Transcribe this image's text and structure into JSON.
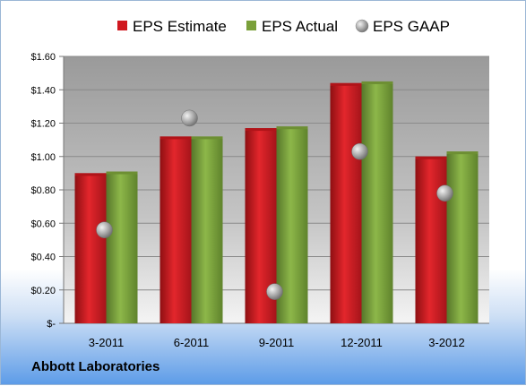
{
  "chart_data": {
    "type": "bar",
    "categories": [
      "3-2011",
      "6-2011",
      "9-2011",
      "12-2011",
      "3-2012"
    ],
    "series": [
      {
        "name": "EPS Estimate",
        "values": [
          0.9,
          1.12,
          1.17,
          1.44,
          1.0
        ],
        "color": "#d0181f"
      },
      {
        "name": "EPS Actual",
        "values": [
          0.91,
          1.12,
          1.18,
          1.45,
          1.03
        ],
        "color": "#7aa03a"
      },
      {
        "name": "EPS GAAP",
        "values": [
          0.56,
          1.23,
          0.19,
          1.03,
          0.78
        ],
        "color": "#a8a8a8",
        "style": "marker"
      }
    ],
    "yticks": [
      "$-",
      "$0.20",
      "$0.40",
      "$0.60",
      "$0.80",
      "$1.00",
      "$1.20",
      "$1.40",
      "$1.60"
    ],
    "ylim": [
      0,
      1.6
    ],
    "grid": true,
    "legend_position": "top",
    "company": "Abbott Laboratories"
  }
}
